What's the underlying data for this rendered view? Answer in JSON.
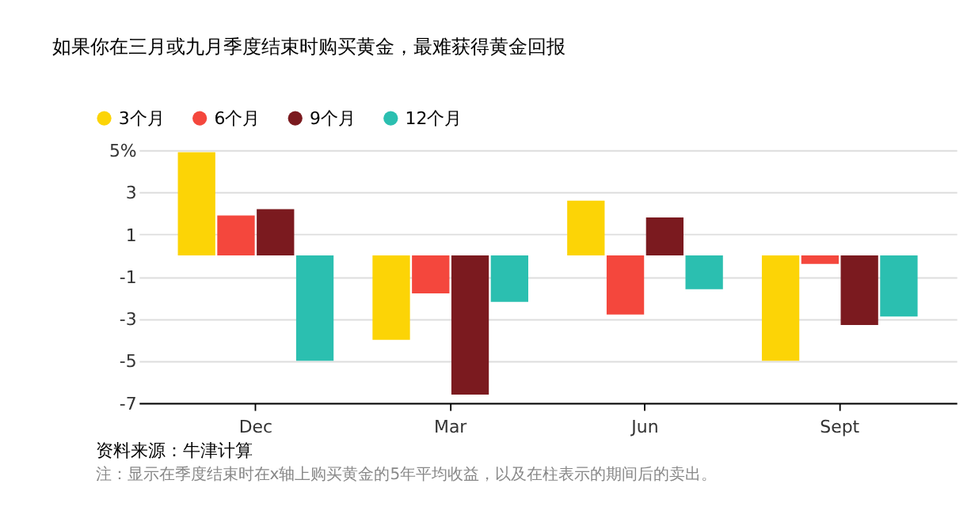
{
  "chart_data": {
    "type": "bar",
    "title": "如果你在三月或九月季度结束时购买黄金，最难获得黄金回报",
    "categories": [
      "Dec",
      "Mar",
      "Jun",
      "Sept"
    ],
    "series": [
      {
        "name": "3个月",
        "color": "#fcd406",
        "values": [
          4.9,
          -4.0,
          2.6,
          -5.0
        ]
      },
      {
        "name": "6个月",
        "color": "#f4473d",
        "values": [
          1.9,
          -1.8,
          -2.8,
          -0.4
        ]
      },
      {
        "name": "9个月",
        "color": "#7b1a1f",
        "values": [
          2.2,
          -6.6,
          1.8,
          -3.3
        ]
      },
      {
        "name": "12个月",
        "color": "#2bbfb0",
        "values": [
          -5.0,
          -2.2,
          -1.6,
          -2.9
        ]
      }
    ],
    "ylim": [
      -7,
      5
    ],
    "yticks": [
      {
        "value": 5,
        "label": "5%"
      },
      3,
      1,
      -1,
      -3,
      -5,
      -7
    ],
    "grid": "y",
    "legend": "top left",
    "annotations": [
      "资料来源：牛津计算",
      "注：显示在季度结束时在x轴上购买黄金的5年平均收益，以及在柱表示的期间后的卖出。"
    ]
  }
}
